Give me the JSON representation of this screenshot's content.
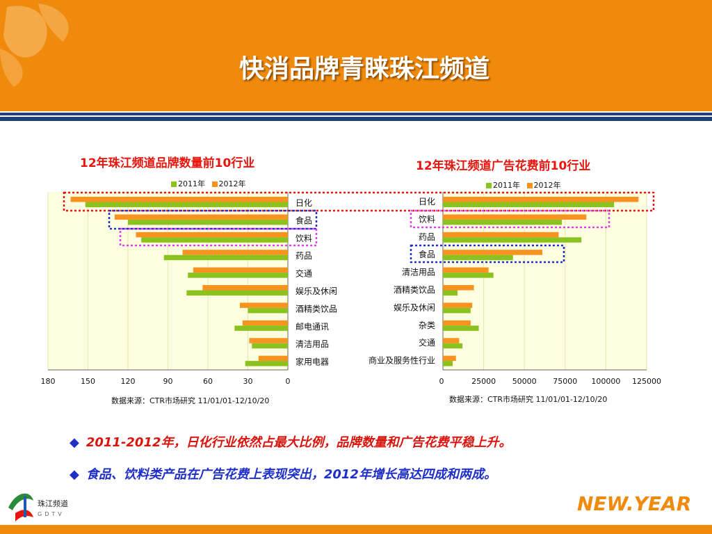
{
  "slide": {
    "title": "快消品牌青睐珠江频道",
    "bullets": [
      "2011-2012年，日化行业依然占最大比例，品牌数量和广告花费平稳上升。",
      "食品、饮料类产品在广告花费上表现突出，2012年增长高达四成和两成。"
    ],
    "bullet_marker": "◆",
    "logo_left_text": "珠江频道",
    "logo_right_text": "NEW.YEAR"
  },
  "colors": {
    "header": "#ef8a0d",
    "stripe": "#1f3f76",
    "series_2011": "#8cc21f",
    "series_2012": "#f7931e",
    "plot_bg": "#fdfde0",
    "red_box": "#e8150d",
    "blue_box": "#1e2fc8",
    "magenta_box": "#e040e8"
  },
  "chart_data": [
    {
      "type": "bar",
      "orientation": "horizontal-reversed",
      "title": "12年珠江频道品牌数量前10行业",
      "categories": [
        "日化",
        "食品",
        "饮料",
        "药品",
        "交通",
        "娱乐及休闲",
        "酒精类饮品",
        "邮电通讯",
        "清洁用品",
        "家用电器"
      ],
      "series": [
        {
          "name": "2011年",
          "values": [
            152,
            120,
            110,
            93,
            75,
            76,
            30,
            40,
            27,
            32
          ]
        },
        {
          "name": "2012年",
          "values": [
            163,
            130,
            114,
            79,
            71,
            64,
            36,
            34,
            29,
            22
          ]
        }
      ],
      "xlim": [
        0,
        180
      ],
      "xticks": [
        "180",
        "150",
        "120",
        "90",
        "60",
        "30",
        "0"
      ],
      "legend": "top",
      "source": "数据来源：CTR市场研究  11/01/01-12/10/20"
    },
    {
      "type": "bar",
      "orientation": "horizontal",
      "title": "12年珠江频道广告花费前10行业",
      "categories": [
        "日化",
        "饮料",
        "药品",
        "食品",
        "清洁用品",
        "酒精类饮品",
        "娱乐及休闲",
        "杂类",
        "交通",
        "商业及服务性行业"
      ],
      "series": [
        {
          "name": "2011年",
          "values": [
            105000,
            73000,
            85000,
            43000,
            31000,
            9000,
            17000,
            22000,
            12000,
            6000
          ]
        },
        {
          "name": "2012年",
          "values": [
            120000,
            88000,
            71000,
            61000,
            28000,
            19000,
            18000,
            17000,
            10000,
            8000
          ]
        }
      ],
      "xlim": [
        0,
        125000
      ],
      "xticks": [
        "0",
        "25000",
        "50000",
        "75000",
        "100000",
        "125000"
      ],
      "legend": "top",
      "source": "数据来源：CTR市场研究  11/01/01-12/10/20"
    }
  ]
}
